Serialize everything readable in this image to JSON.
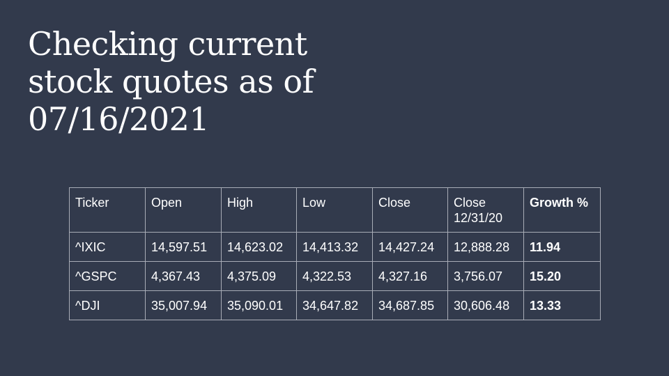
{
  "slide": {
    "title_lines": [
      "Checking current",
      "stock quotes as of",
      "07/16/2021"
    ]
  },
  "table": {
    "headers": [
      "Ticker",
      "Open",
      "High",
      "Low",
      "Close",
      "Close 12/31/20",
      "Growth %"
    ],
    "rows": [
      [
        "^IXIC",
        "14,597.51",
        "14,623.02",
        "14,413.32",
        "14,427.24",
        "12,888.28",
        "11.94"
      ],
      [
        "^GSPC",
        "4,367.43",
        "4,375.09",
        "4,322.53",
        "4,327.16",
        "3,756.07",
        "15.20"
      ],
      [
        "^DJI",
        "35,007.94",
        "35,090.01",
        "34,647.82",
        "34,687.85",
        "30,606.48",
        "13.33"
      ]
    ]
  },
  "colors": {
    "background": "#323a4c",
    "text": "#ffffff",
    "table_border": "#a9adb7"
  }
}
